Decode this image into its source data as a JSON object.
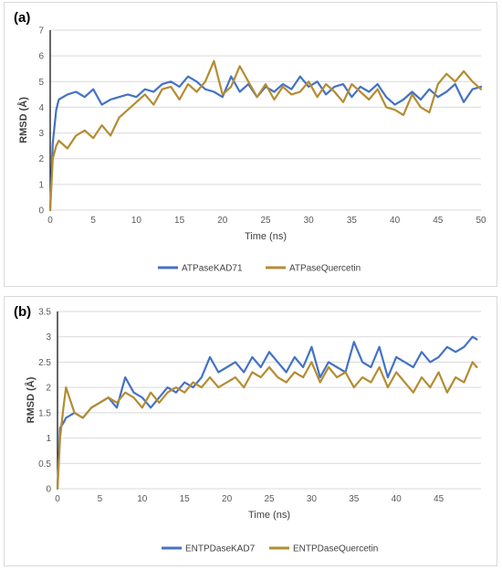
{
  "chart_data": [
    {
      "type": "line",
      "panel_label": "(a)",
      "xlabel": "Time (ns)",
      "ylabel": "RMSD (Å)",
      "xlim": [
        0,
        50
      ],
      "ylim": [
        0,
        7
      ],
      "xticks": [
        0,
        5,
        10,
        15,
        20,
        25,
        30,
        35,
        40,
        45,
        50
      ],
      "yticks": [
        0,
        1,
        2,
        3,
        4,
        5,
        6,
        7
      ],
      "grid": true,
      "legend_position": "bottom",
      "series": [
        {
          "name": "ATPaseKAD71",
          "color": "#4472c4",
          "x": [
            0,
            0.3,
            0.7,
            1,
            2,
            3,
            4,
            5,
            6,
            7,
            8,
            9,
            10,
            11,
            12,
            13,
            14,
            15,
            16,
            17,
            18,
            19,
            20,
            21,
            22,
            23,
            24,
            25,
            26,
            27,
            28,
            29,
            30,
            31,
            32,
            33,
            34,
            35,
            36,
            37,
            38,
            39,
            40,
            41,
            42,
            43,
            44,
            45,
            46,
            47,
            48,
            49,
            50
          ],
          "y": [
            0,
            2.6,
            3.9,
            4.3,
            4.5,
            4.6,
            4.4,
            4.7,
            4.1,
            4.3,
            4.4,
            4.5,
            4.4,
            4.7,
            4.6,
            4.9,
            5.0,
            4.8,
            5.2,
            5.0,
            4.7,
            4.6,
            4.4,
            5.2,
            4.6,
            4.9,
            4.4,
            4.8,
            4.6,
            4.9,
            4.7,
            5.2,
            4.8,
            5.0,
            4.5,
            4.8,
            4.9,
            4.4,
            4.8,
            4.6,
            4.9,
            4.4,
            4.1,
            4.3,
            4.6,
            4.3,
            4.7,
            4.4,
            4.6,
            4.9,
            4.2,
            4.7,
            4.8
          ]
        },
        {
          "name": "ATPaseQuercetin",
          "color": "#b48c32",
          "x": [
            0,
            0.3,
            0.7,
            1,
            2,
            3,
            4,
            5,
            6,
            7,
            8,
            9,
            10,
            11,
            12,
            13,
            14,
            15,
            16,
            17,
            18,
            19,
            20,
            21,
            22,
            23,
            24,
            25,
            26,
            27,
            28,
            29,
            30,
            31,
            32,
            33,
            34,
            35,
            36,
            37,
            38,
            39,
            40,
            41,
            42,
            43,
            44,
            45,
            46,
            47,
            48,
            49,
            50
          ],
          "y": [
            0,
            2.0,
            2.5,
            2.7,
            2.4,
            2.9,
            3.1,
            2.8,
            3.3,
            2.9,
            3.6,
            3.9,
            4.2,
            4.5,
            4.1,
            4.7,
            4.8,
            4.3,
            4.9,
            4.6,
            5.0,
            5.8,
            4.5,
            4.8,
            5.6,
            5.0,
            4.4,
            4.9,
            4.3,
            4.8,
            4.5,
            4.6,
            5.0,
            4.4,
            4.9,
            4.6,
            4.2,
            4.9,
            4.6,
            4.3,
            4.7,
            4.0,
            3.9,
            3.7,
            4.5,
            4.0,
            3.8,
            4.9,
            5.3,
            5.0,
            5.4,
            5.0,
            4.7
          ]
        }
      ]
    },
    {
      "type": "line",
      "panel_label": "(b)",
      "xlabel": "Time (ns)",
      "ylabel": "RMSD (Å)",
      "xlim": [
        0,
        50
      ],
      "ylim": [
        0,
        3.5
      ],
      "xticks": [
        0,
        5,
        10,
        15,
        20,
        25,
        30,
        35,
        40,
        45
      ],
      "yticks": [
        0,
        0.5,
        1,
        1.5,
        2,
        2.5,
        3,
        3.5
      ],
      "grid": true,
      "legend_position": "bottom",
      "series": [
        {
          "name": "ENTPDaseKAD7",
          "color": "#4472c4",
          "x": [
            0,
            0.3,
            0.7,
            1,
            2,
            3,
            4,
            5,
            6,
            7,
            8,
            9,
            10,
            11,
            12,
            13,
            14,
            15,
            16,
            17,
            18,
            19,
            20,
            21,
            22,
            23,
            24,
            25,
            26,
            27,
            28,
            29,
            30,
            31,
            32,
            33,
            34,
            35,
            36,
            37,
            38,
            39,
            40,
            41,
            42,
            43,
            44,
            45,
            46,
            47,
            48,
            49,
            49.5
          ],
          "y": [
            0,
            1.2,
            1.3,
            1.4,
            1.5,
            1.4,
            1.6,
            1.7,
            1.8,
            1.6,
            2.2,
            1.9,
            1.8,
            1.6,
            1.8,
            2.0,
            1.9,
            2.1,
            2.0,
            2.2,
            2.6,
            2.3,
            2.4,
            2.5,
            2.3,
            2.6,
            2.4,
            2.7,
            2.5,
            2.3,
            2.6,
            2.4,
            2.8,
            2.2,
            2.5,
            2.4,
            2.3,
            2.9,
            2.5,
            2.4,
            2.8,
            2.2,
            2.6,
            2.5,
            2.4,
            2.7,
            2.5,
            2.6,
            2.8,
            2.7,
            2.8,
            3.0,
            2.95
          ]
        },
        {
          "name": "ENTPDaseQuercetin",
          "color": "#b48c32",
          "x": [
            0,
            0.3,
            0.7,
            1,
            2,
            3,
            4,
            5,
            6,
            7,
            8,
            9,
            10,
            11,
            12,
            13,
            14,
            15,
            16,
            17,
            18,
            19,
            20,
            21,
            22,
            23,
            24,
            25,
            26,
            27,
            28,
            29,
            30,
            31,
            32,
            33,
            34,
            35,
            36,
            37,
            38,
            39,
            40,
            41,
            42,
            43,
            44,
            45,
            46,
            47,
            48,
            49,
            49.5
          ],
          "y": [
            0,
            1.0,
            1.6,
            2.0,
            1.5,
            1.4,
            1.6,
            1.7,
            1.8,
            1.7,
            1.9,
            1.8,
            1.6,
            1.9,
            1.7,
            1.9,
            2.0,
            1.9,
            2.1,
            2.0,
            2.2,
            2.0,
            2.1,
            2.2,
            2.0,
            2.3,
            2.2,
            2.4,
            2.2,
            2.1,
            2.3,
            2.2,
            2.5,
            2.1,
            2.4,
            2.2,
            2.3,
            2.0,
            2.2,
            2.1,
            2.4,
            2.0,
            2.3,
            2.1,
            1.9,
            2.2,
            2.0,
            2.3,
            1.9,
            2.2,
            2.1,
            2.5,
            2.4
          ]
        }
      ]
    }
  ]
}
